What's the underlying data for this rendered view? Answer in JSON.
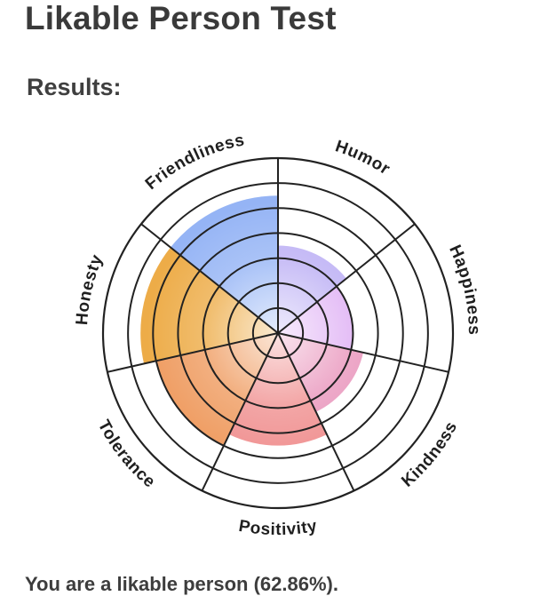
{
  "page": {
    "title": "Likable Person Test",
    "results_heading": "Results:",
    "result_text": "You are a likable person (62.86%)."
  },
  "chart_data": {
    "type": "radial-bar",
    "categories": [
      "Humor",
      "Happiness",
      "Kindness",
      "Positivity",
      "Tolerance",
      "Honesty",
      "Friendliness"
    ],
    "values": [
      3.5,
      3.0,
      3.5,
      4.5,
      5.0,
      5.5,
      5.5
    ],
    "max": 7,
    "rings": 7,
    "colors": [
      "#b7aaf3",
      "#dcaaf3",
      "#e88fb8",
      "#ef8a8a",
      "#ee9758",
      "#eca83e",
      "#8fb0f4"
    ],
    "center_color": "#eef0ff"
  }
}
